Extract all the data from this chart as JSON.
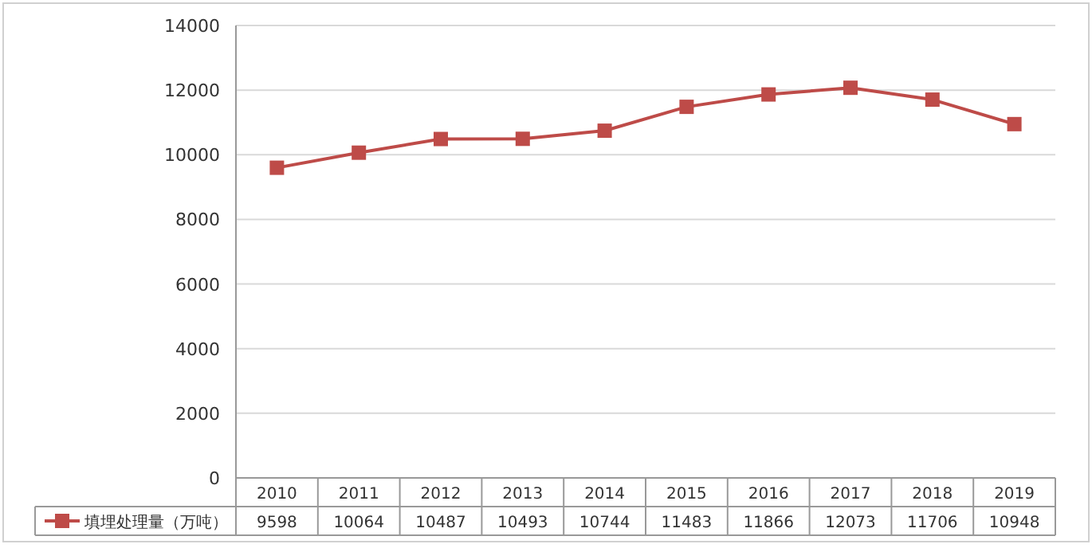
{
  "chart_data": {
    "type": "line",
    "categories": [
      "2010",
      "2011",
      "2012",
      "2013",
      "2014",
      "2015",
      "2016",
      "2017",
      "2018",
      "2019"
    ],
    "series": [
      {
        "name": "填埋处理量（万吨）",
        "color": "#be4b48",
        "values": [
          9598,
          10064,
          10487,
          10493,
          10744,
          11483,
          11866,
          12073,
          11706,
          10948
        ]
      }
    ],
    "ylim": [
      0,
      14000
    ],
    "yticks": [
      0,
      2000,
      4000,
      6000,
      8000,
      10000,
      12000,
      14000
    ],
    "grid": "y",
    "marker": "square",
    "data_labels": true,
    "legend": "bottom left"
  }
}
